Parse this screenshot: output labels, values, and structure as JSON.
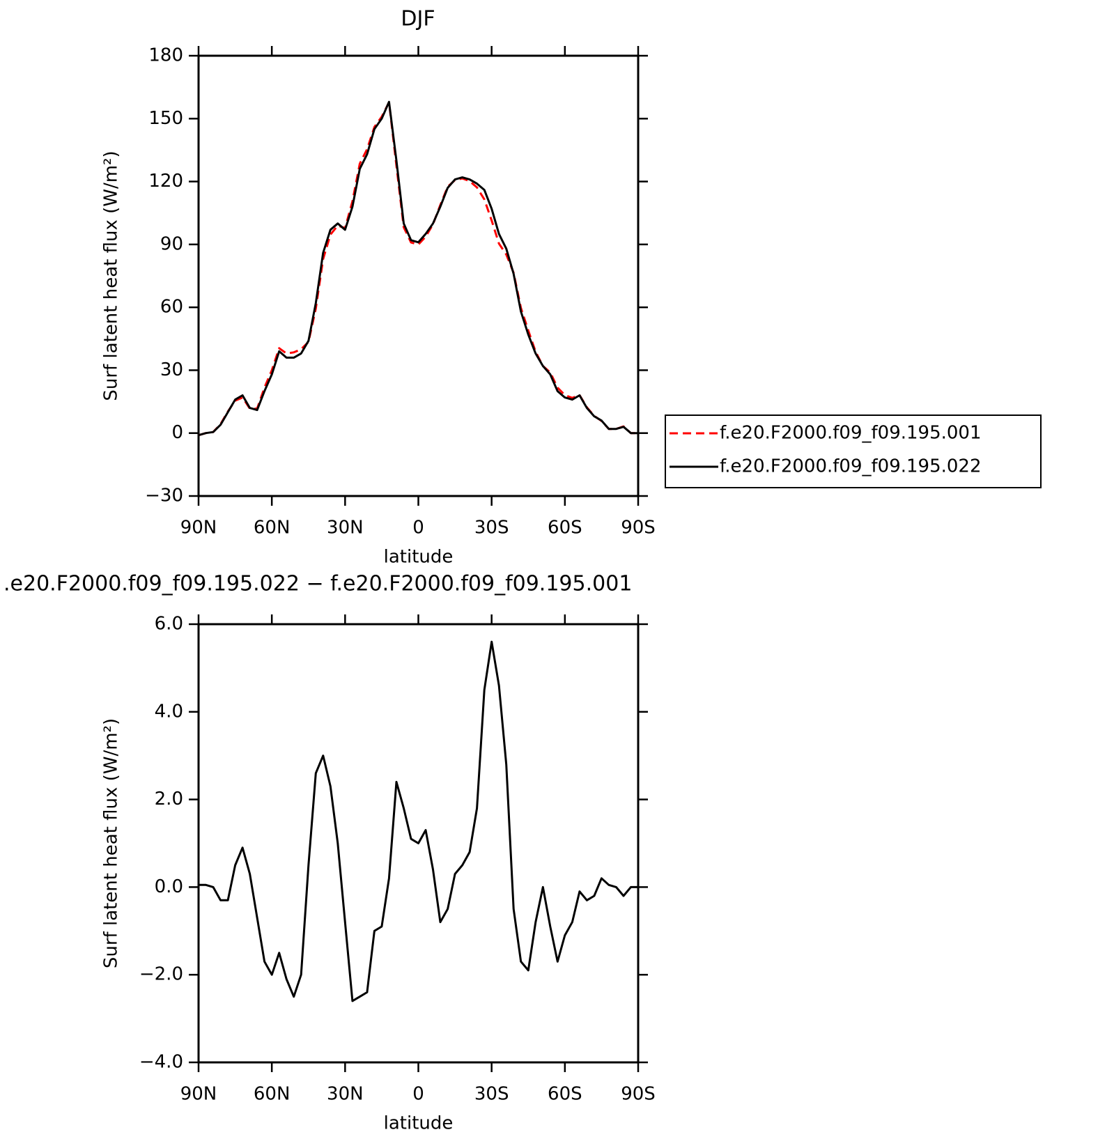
{
  "chart_data": [
    {
      "type": "line",
      "title": "DJF",
      "xlabel": "latitude",
      "ylabel": "Surf latent heat flux (W/m²)",
      "x": [
        90,
        87,
        84,
        81,
        78,
        75,
        72,
        69,
        66,
        63,
        60,
        57,
        54,
        51,
        48,
        45,
        42,
        39,
        36,
        33,
        30,
        27,
        24,
        21,
        18,
        15,
        12,
        9,
        6,
        3,
        0,
        -3,
        -6,
        -9,
        -12,
        -15,
        -18,
        -21,
        -24,
        -27,
        -30,
        -33,
        -36,
        -39,
        -42,
        -45,
        -48,
        -51,
        -54,
        -57,
        -60,
        -63,
        -66,
        -69,
        -72,
        -75,
        -78,
        -81,
        -84,
        -87,
        -90
      ],
      "series": [
        {
          "name": "f.e20.F2000.f09_f09.195.001",
          "color": "#ff0000",
          "dash": true,
          "values": [
            -1,
            0,
            0.5,
            4.3,
            10.3,
            15.5,
            17,
            11.7,
            11.7,
            21.7,
            30,
            40.5,
            38,
            38.5,
            40,
            43.5,
            59.4,
            83,
            94.7,
            99,
            97.8,
            110.6,
            128.5,
            135.4,
            146,
            150.9,
            157.8,
            127.6,
            98.2,
            90.9,
            90,
            93.7,
            99.6,
            108.8,
            117.5,
            120.7,
            121.5,
            120.2,
            117.2,
            111.5,
            101.4,
            90.4,
            85.2,
            76.5,
            59.7,
            48.9,
            38.8,
            32,
            28.9,
            21.7,
            18.1,
            16.8,
            18.1,
            12.3,
            8.2,
            5.8,
            2,
            2,
            3.2,
            0,
            0
          ]
        },
        {
          "name": "f.e20.F2000.f09_f09.195.022",
          "color": "#000000",
          "dash": false,
          "values": [
            -1,
            0,
            0.5,
            4,
            10,
            16,
            18,
            12,
            11,
            20,
            28,
            39,
            36,
            36,
            38,
            44,
            62,
            86,
            97,
            100,
            97,
            108,
            126,
            133,
            145,
            150,
            158,
            130,
            100,
            92,
            91,
            95,
            100,
            108,
            117,
            121,
            122,
            121,
            119,
            116,
            107,
            95,
            88,
            76,
            58,
            47,
            38,
            32,
            28,
            20,
            17,
            16,
            18,
            12,
            8,
            6,
            2,
            2,
            3,
            0,
            0
          ]
        }
      ],
      "xlim": [
        90,
        -90
      ],
      "xticks": [
        {
          "value": 90,
          "label": "90N"
        },
        {
          "value": 60,
          "label": "60N"
        },
        {
          "value": 30,
          "label": "30N"
        },
        0,
        {
          "value": -30,
          "label": "30S"
        },
        {
          "value": -60,
          "label": "60S"
        },
        {
          "value": -90,
          "label": "90S"
        }
      ],
      "ylim": [
        -30,
        180
      ],
      "yticks": [
        {
          "value": -30,
          "label": "−30"
        },
        0,
        30,
        60,
        90,
        120,
        150,
        180
      ],
      "legend": "right"
    },
    {
      "type": "line",
      "title": ".e20.F2000.f09_f09.195.022 − f.e20.F2000.f09_f09.195.001",
      "xlabel": "latitude",
      "ylabel": "Surf latent heat flux (W/m²)",
      "x": [
        90,
        87,
        84,
        81,
        78,
        75,
        72,
        69,
        66,
        63,
        60,
        57,
        54,
        51,
        48,
        45,
        42,
        39,
        36,
        33,
        30,
        27,
        24,
        21,
        18,
        15,
        12,
        9,
        6,
        3,
        0,
        -3,
        -6,
        -9,
        -12,
        -15,
        -18,
        -21,
        -24,
        -27,
        -30,
        -33,
        -36,
        -39,
        -42,
        -45,
        -48,
        -51,
        -54,
        -57,
        -60,
        -63,
        -66,
        -69,
        -72,
        -75,
        -78,
        -81,
        -84,
        -87,
        -90
      ],
      "values": [
        0.05,
        0.05,
        0,
        -0.3,
        -0.3,
        0.5,
        0.9,
        0.3,
        -0.7,
        -1.7,
        -2,
        -1.5,
        -2.1,
        -2.5,
        -2,
        0.5,
        2.6,
        3,
        2.3,
        1,
        -0.8,
        -2.6,
        -2.5,
        -2.4,
        -1,
        -0.9,
        0.2,
        2.4,
        1.8,
        1.1,
        1,
        1.3,
        0.4,
        -0.8,
        -0.5,
        0.3,
        0.5,
        0.8,
        1.8,
        4.5,
        5.6,
        4.6,
        2.8,
        -0.5,
        -1.7,
        -1.9,
        -0.8,
        0,
        -0.9,
        -1.7,
        -1.1,
        -0.8,
        -0.1,
        -0.3,
        -0.2,
        0.2,
        0.05,
        0,
        -0.2,
        0,
        0
      ],
      "color": "#000000",
      "xlim": [
        90,
        -90
      ],
      "xticks": [
        {
          "value": 90,
          "label": "90N"
        },
        {
          "value": 60,
          "label": "60N"
        },
        {
          "value": 30,
          "label": "30N"
        },
        0,
        {
          "value": -30,
          "label": "30S"
        },
        {
          "value": -60,
          "label": "60S"
        },
        {
          "value": -90,
          "label": "90S"
        }
      ],
      "ylim": [
        -4,
        6
      ],
      "yticks": [
        {
          "value": -4,
          "label": "−4.0"
        },
        {
          "value": -2,
          "label": "−2.0"
        },
        {
          "value": 0,
          "label": "0.0"
        },
        {
          "value": 2,
          "label": "2.0"
        },
        {
          "value": 4,
          "label": "4.0"
        },
        {
          "value": 6,
          "label": "6.0"
        }
      ]
    }
  ]
}
